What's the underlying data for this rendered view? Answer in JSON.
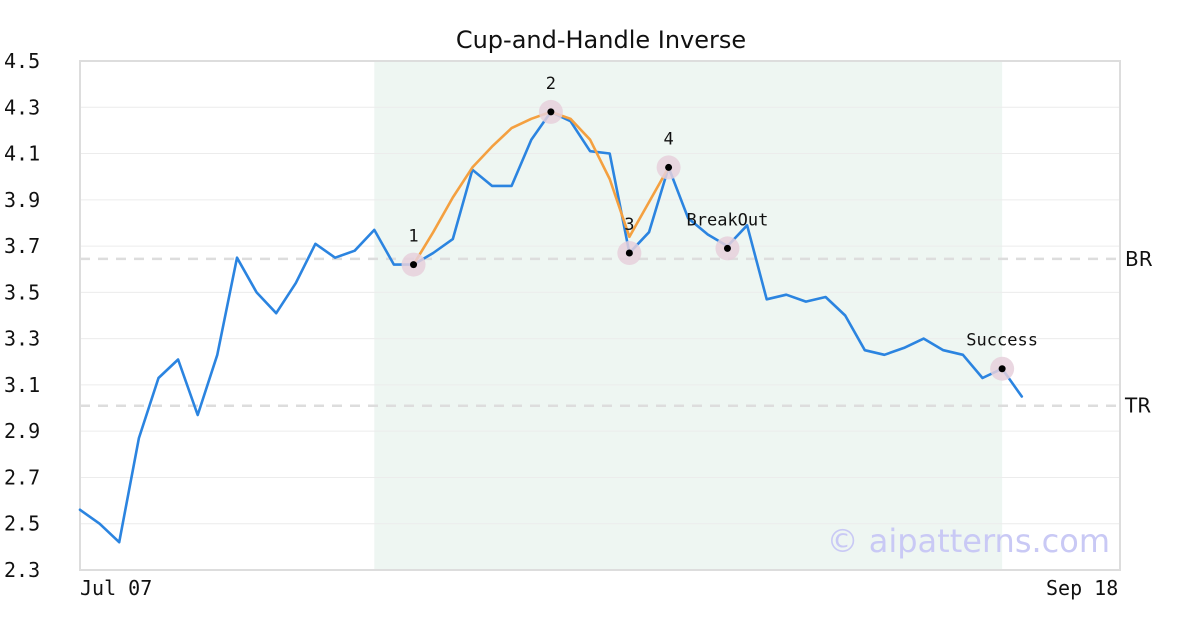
{
  "chart_data": {
    "type": "line",
    "title": "Cup-and-Handle Inverse",
    "xlabel": "",
    "ylabel": "",
    "ylim": [
      2.3,
      4.5
    ],
    "yticks": [
      "2.3",
      "2.5",
      "2.7",
      "2.9",
      "3.1",
      "3.3",
      "3.5",
      "3.7",
      "3.9",
      "4.1",
      "4.3",
      "4.5"
    ],
    "x_tick_labels": [
      {
        "index": 0,
        "label": "Jul 07"
      },
      {
        "index": 52,
        "label": "Sep 18"
      }
    ],
    "grid": true,
    "series": [
      {
        "color": "#2b84e0",
        "values": [
          2.56,
          2.5,
          2.42,
          2.87,
          3.13,
          3.21,
          2.97,
          3.23,
          3.65,
          3.5,
          3.41,
          3.54,
          3.71,
          3.65,
          3.68,
          3.77,
          3.62,
          3.62,
          3.67,
          3.73,
          4.03,
          3.96,
          3.96,
          4.16,
          4.28,
          4.24,
          4.11,
          4.1,
          3.67,
          3.76,
          4.04,
          3.82,
          3.75,
          3.7,
          3.79,
          3.47,
          3.49,
          3.46,
          3.48,
          3.4,
          3.25,
          3.23,
          3.26,
          3.3,
          3.25,
          3.23,
          3.13,
          3.17,
          3.05
        ]
      },
      {
        "color": "#f4a040",
        "start_index": 17,
        "values": [
          3.62,
          3.76,
          3.91,
          4.04,
          4.13,
          4.21,
          4.25,
          4.28,
          4.25,
          4.16,
          3.99,
          3.74,
          3.89,
          4.04
        ]
      }
    ],
    "highlight_region": {
      "start_index": 15,
      "end_index": 47,
      "color": "#eef6f2"
    },
    "reference_lines": [
      {
        "label": "BR",
        "value": 3.645
      },
      {
        "label": "TR",
        "value": 3.01
      }
    ],
    "points": [
      {
        "label": "1",
        "index": 17,
        "value": 3.62
      },
      {
        "label": "2",
        "index": 24,
        "value": 4.28
      },
      {
        "label": "3",
        "index": 28,
        "value": 3.67
      },
      {
        "label": "4",
        "index": 30,
        "value": 4.04
      },
      {
        "label": "BreakOut",
        "index": 33,
        "value": 3.69
      },
      {
        "label": "Success",
        "index": 47,
        "value": 3.17
      }
    ],
    "watermark": "© aipatterns.com"
  },
  "colors": {
    "frame": "#dddddd",
    "grid": "#ececec",
    "reference": "#dddddd",
    "marker_halo": "#e6d0dc",
    "marker_dot": "#000000"
  }
}
